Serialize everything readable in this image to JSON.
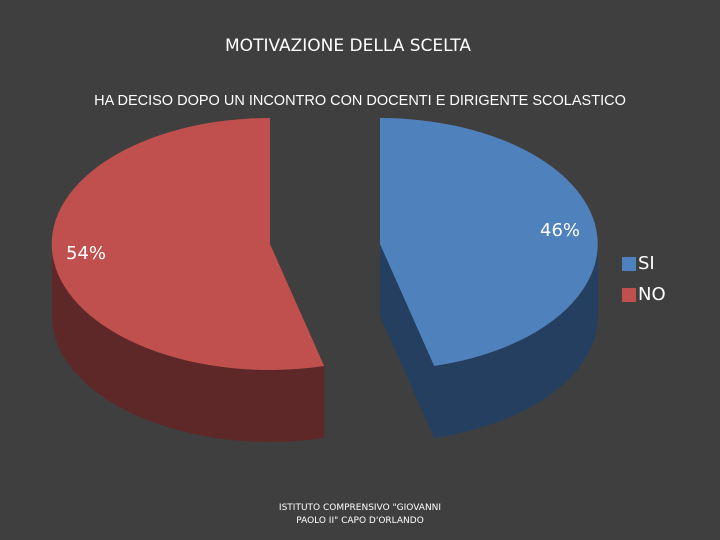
{
  "slide": {
    "title": "MOTIVAZIONE DELLA SCELTA",
    "footer_line1": "ISTITUTO COMPRENSIVO \"GIOVANNI",
    "footer_line2": "PAOLO II\" CAPO D'ORLANDO"
  },
  "chart_data": {
    "type": "pie",
    "title": "HA DECISO DOPO UN INCONTRO CON DOCENTI E DIRIGENTE SCOLASTICO",
    "categories": [
      "SI",
      "NO"
    ],
    "values": [
      46,
      54
    ],
    "labels": [
      "46%",
      "54%"
    ],
    "colors": {
      "SI": {
        "top": "#4f81bd",
        "side": "#253f60"
      },
      "NO": {
        "top": "#c0504d",
        "side": "#5e2828"
      }
    },
    "style": "3d-exploded",
    "legend": "right"
  }
}
